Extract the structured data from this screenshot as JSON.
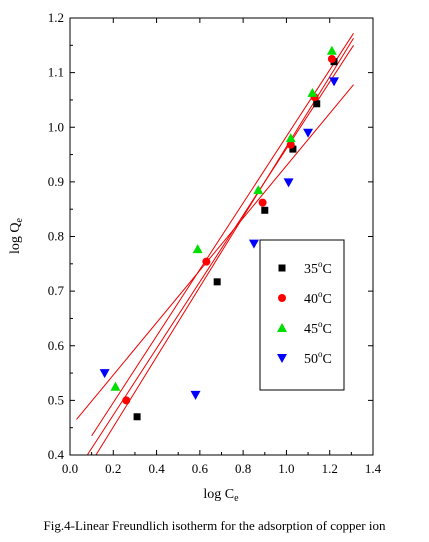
{
  "caption": "Fig.4-Linear Freundlich isotherm for the adsorption of copper ion",
  "chart_data": {
    "type": "scatter",
    "xlabel": "log C",
    "xlabel_sub": "e",
    "ylabel": "log Q",
    "ylabel_sub": "e",
    "xlim": [
      0.0,
      1.4
    ],
    "ylim": [
      0.4,
      1.2
    ],
    "xticks": [
      0.0,
      0.2,
      0.4,
      0.6,
      0.8,
      1.0,
      1.2,
      1.4
    ],
    "yticks": [
      0.4,
      0.5,
      0.6,
      0.7,
      0.8,
      0.9,
      1.0,
      1.1,
      1.2
    ],
    "xtick_labels": [
      "0.0",
      "0.2",
      "0.4",
      "0.6",
      "0.8",
      "1.0",
      "1.2",
      "1.4"
    ],
    "ytick_labels": [
      "0.4",
      "0.5",
      "0.6",
      "0.7",
      "0.8",
      "0.9",
      "1.0",
      "1.1",
      "1.2"
    ],
    "grid": false,
    "legend_position": "center-right",
    "series": [
      {
        "name": "35°C",
        "label_num": "35",
        "label_deg": "o",
        "label_unit": "C",
        "marker": "square",
        "color": "#000000",
        "x": [
          0.31,
          0.68,
          0.9,
          1.03,
          1.14,
          1.22
        ],
        "y": [
          0.47,
          0.717,
          0.848,
          0.96,
          1.043,
          1.12
        ],
        "fit_line": [
          [
            0.12,
            0.4
          ],
          [
            1.31,
            1.163
          ]
        ]
      },
      {
        "name": "40°C",
        "label_num": "40",
        "label_deg": "o",
        "label_unit": "C",
        "marker": "circle",
        "color": "#ff0000",
        "x": [
          0.26,
          0.63,
          0.89,
          1.02,
          1.13,
          1.21
        ],
        "y": [
          0.5,
          0.754,
          0.862,
          0.968,
          1.055,
          1.125
        ],
        "fit_line": [
          [
            0.08,
            0.4
          ],
          [
            1.31,
            1.15
          ]
        ]
      },
      {
        "name": "45°C",
        "label_num": "45",
        "label_deg": "o",
        "label_unit": "C",
        "marker": "triangle-up",
        "color": "#00e000",
        "x": [
          0.21,
          0.59,
          0.87,
          1.02,
          1.12,
          1.21
        ],
        "y": [
          0.525,
          0.777,
          0.885,
          0.98,
          1.063,
          1.14
        ],
        "fit_line": [
          [
            0.1,
            0.435
          ],
          [
            1.31,
            1.172
          ]
        ]
      },
      {
        "name": "50°C",
        "label_num": "50",
        "label_deg": "o",
        "label_unit": "C",
        "marker": "triangle-down",
        "color": "#0000ff",
        "x": [
          0.16,
          0.58,
          0.85,
          1.01,
          1.1,
          1.22
        ],
        "y": [
          0.55,
          0.51,
          0.787,
          0.899,
          0.99,
          1.084
        ],
        "fit_line": [
          [
            0.03,
            0.465
          ],
          [
            1.31,
            1.078
          ]
        ]
      }
    ],
    "fit_color": "#ee0000"
  }
}
